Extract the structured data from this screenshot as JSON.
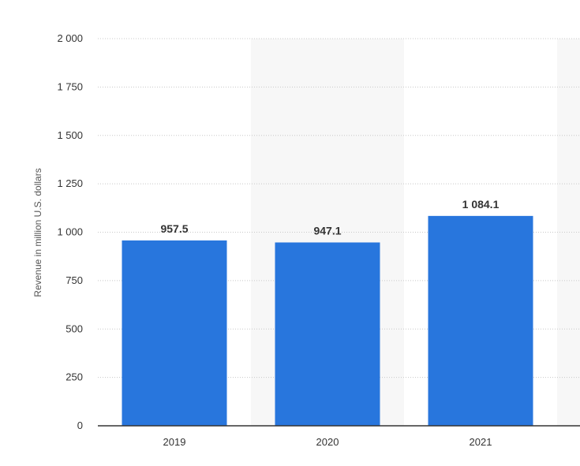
{
  "chart_data": {
    "type": "bar",
    "y_axis_label": "Revenue in million U.S. dollars",
    "categories": [
      "2019",
      "2020",
      "2021"
    ],
    "values": [
      957.5,
      947.1,
      1084.1
    ],
    "value_labels": [
      "957.5",
      "947.1",
      "1 084.1"
    ],
    "color": "#2876dd",
    "ylim": [
      0,
      2000
    ],
    "yticks": [
      0,
      250,
      500,
      750,
      {
        "value": 1000,
        "label": "1 000"
      },
      {
        "value": 1250,
        "label": "1 250"
      },
      {
        "value": 1500,
        "label": "1 500"
      },
      {
        "value": 1750,
        "label": "1 750"
      },
      {
        "value": 2000,
        "label": "2 000"
      }
    ],
    "grid": true
  }
}
